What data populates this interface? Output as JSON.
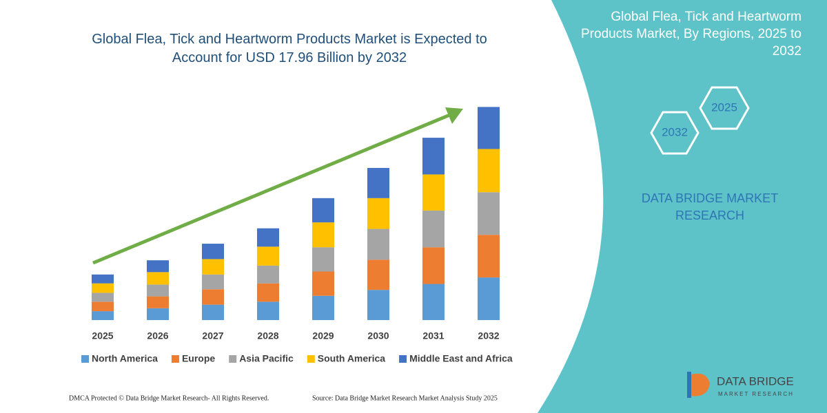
{
  "chart_data": {
    "type": "stacked_bar",
    "title": "Global Flea, Tick and Heartworm Products Market is Expected to Account for USD 17.96 Billion by 2032",
    "categories": [
      "2025",
      "2026",
      "2027",
      "2028",
      "2029",
      "2030",
      "2031",
      "2032"
    ],
    "series": [
      {
        "name": "North America",
        "color": "#5b9bd5",
        "values": [
          0.75,
          1.0,
          1.3,
          1.55,
          2.05,
          2.55,
          3.05,
          3.6
        ]
      },
      {
        "name": "Europe",
        "color": "#ed7d31",
        "values": [
          0.8,
          1.0,
          1.3,
          1.55,
          2.05,
          2.55,
          3.1,
          3.6
        ]
      },
      {
        "name": "Asia Pacific",
        "color": "#a5a5a5",
        "values": [
          0.75,
          1.0,
          1.25,
          1.5,
          2.05,
          2.6,
          3.1,
          3.6
        ]
      },
      {
        "name": "South America",
        "color": "#ffc000",
        "values": [
          0.8,
          1.05,
          1.3,
          1.6,
          2.1,
          2.6,
          3.05,
          3.65
        ]
      },
      {
        "name": "Middle East and Africa",
        "color": "#4472c4",
        "values": [
          0.75,
          1.0,
          1.3,
          1.55,
          2.05,
          2.55,
          3.1,
          3.55
        ]
      }
    ],
    "legend": "bottom"
  },
  "side_panel": {
    "title": "Global Flea, Tick and Heartworm Products Market, By Regions, 2025 to 2032",
    "hex_start": "2025",
    "hex_end": "2032",
    "brand": "DATA BRIDGE MARKET RESEARCH",
    "logo_text": "DATA BRIDGE",
    "logo_subtext": "MARKET RESEARCH"
  },
  "footer": {
    "left": "DMCA Protected © Data Bridge Market Research- All Rights Reserved.",
    "right": "Source: Data Bridge Market Research Market Analysis Study 2025"
  }
}
